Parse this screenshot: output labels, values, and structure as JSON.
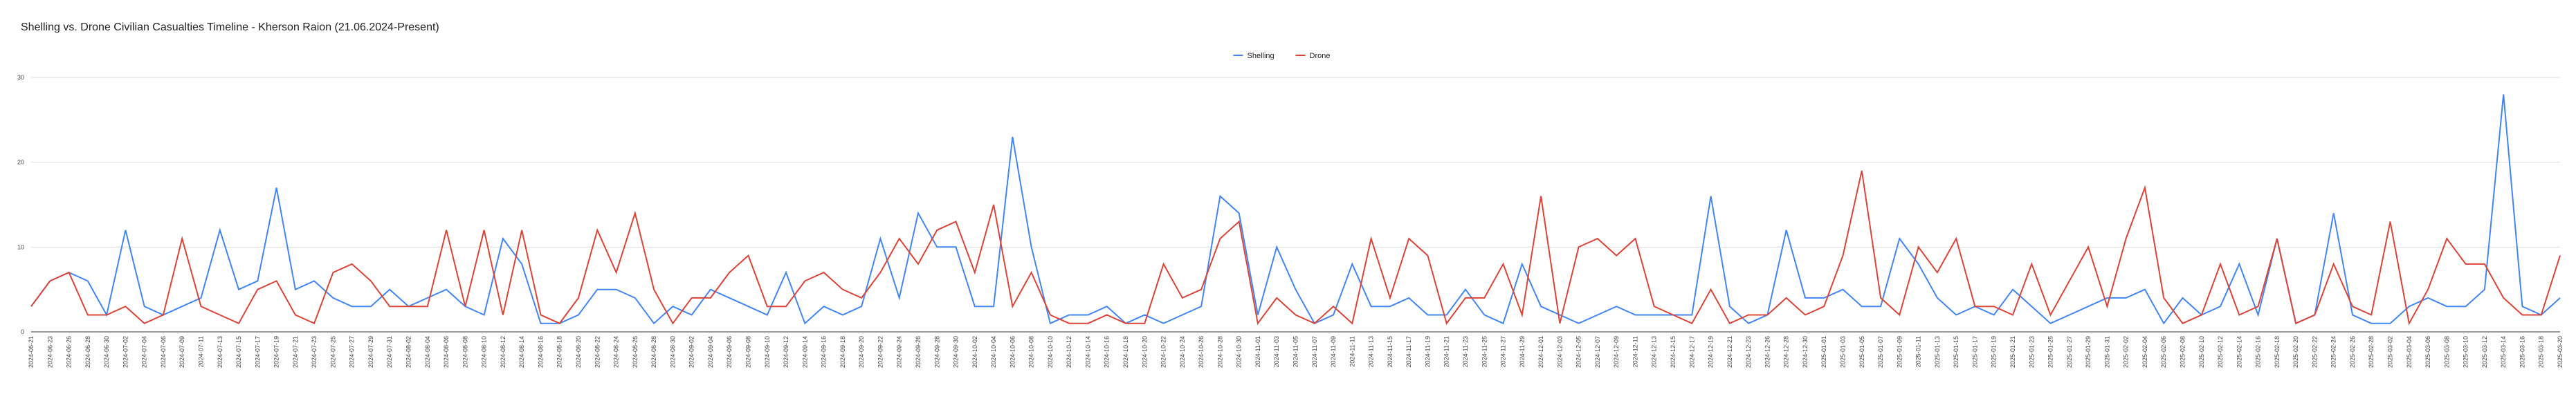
{
  "chart_data": {
    "type": "line",
    "title": "Shelling vs. Drone Civilian Casualties Timeline - Kherson Raion (21.06.2024-Present)",
    "categories": [
      "2024-06-21",
      "2024-06-23",
      "2024-06-26",
      "2024-06-28",
      "2024-06-30",
      "2024-07-02",
      "2024-07-04",
      "2024-07-06",
      "2024-07-09",
      "2024-07-11",
      "2024-07-13",
      "2024-07-15",
      "2024-07-17",
      "2024-07-19",
      "2024-07-21",
      "2024-07-23",
      "2024-07-25",
      "2024-07-27",
      "2024-07-29",
      "2024-07-31",
      "2024-08-02",
      "2024-08-04",
      "2024-08-06",
      "2024-08-08",
      "2024-08-10",
      "2024-08-12",
      "2024-08-14",
      "2024-08-16",
      "2024-08-18",
      "2024-08-20",
      "2024-08-22",
      "2024-08-24",
      "2024-08-26",
      "2024-08-28",
      "2024-08-30",
      "2024-09-02",
      "2024-09-04",
      "2024-09-06",
      "2024-09-08",
      "2024-09-10",
      "2024-09-12",
      "2024-09-14",
      "2024-09-16",
      "2024-09-18",
      "2024-09-20",
      "2024-09-22",
      "2024-09-24",
      "2024-09-26",
      "2024-09-28",
      "2024-09-30",
      "2024-10-02",
      "2024-10-04",
      "2024-10-06",
      "2024-10-08",
      "2024-10-10",
      "2024-10-12",
      "2024-10-14",
      "2024-10-16",
      "2024-10-18",
      "2024-10-20",
      "2024-10-22",
      "2024-10-24",
      "2024-10-26",
      "2024-10-28",
      "2024-10-30",
      "2024-11-01",
      "2024-11-03",
      "2024-11-05",
      "2024-11-07",
      "2024-11-09",
      "2024-11-11",
      "2024-11-13",
      "2024-11-15",
      "2024-11-17",
      "2024-11-19",
      "2024-11-21",
      "2024-11-23",
      "2024-11-25",
      "2024-11-27",
      "2024-11-29",
      "2024-12-01",
      "2024-12-03",
      "2024-12-05",
      "2024-12-07",
      "2024-12-09",
      "2024-12-11",
      "2024-12-13",
      "2024-12-15",
      "2024-12-17",
      "2024-12-19",
      "2024-12-21",
      "2024-12-23",
      "2024-12-26",
      "2024-12-28",
      "2024-12-30",
      "2025-01-01",
      "2025-01-03",
      "2025-01-05",
      "2025-01-07",
      "2025-01-09",
      "2025-01-11",
      "2025-01-13",
      "2025-01-15",
      "2025-01-17",
      "2025-01-19",
      "2025-01-21",
      "2025-01-23",
      "2025-01-25",
      "2025-01-27",
      "2025-01-29",
      "2025-01-31",
      "2025-02-02",
      "2025-02-04",
      "2025-02-06",
      "2025-02-08",
      "2025-02-10",
      "2025-02-12",
      "2025-02-14",
      "2025-02-16",
      "2025-02-18",
      "2025-02-20",
      "2025-02-22",
      "2025-02-24",
      "2025-02-26",
      "2025-02-28",
      "2025-03-02",
      "2025-03-04",
      "2025-03-06",
      "2025-03-08",
      "2025-03-10",
      "2025-03-12",
      "2025-03-14",
      "2025-03-16",
      "2025-03-18",
      "2025-03-20"
    ],
    "series": [
      {
        "name": "Shelling",
        "color": "#4285f4",
        "values": [
          3,
          6,
          7,
          6,
          2,
          12,
          3,
          2,
          3,
          4,
          12,
          5,
          6,
          17,
          5,
          6,
          4,
          3,
          3,
          5,
          3,
          4,
          5,
          3,
          2,
          11,
          8,
          1,
          1,
          2,
          5,
          5,
          4,
          1,
          3,
          2,
          5,
          4,
          3,
          2,
          7,
          1,
          3,
          2,
          3,
          11,
          4,
          14,
          10,
          10,
          3,
          3,
          23,
          10,
          1,
          2,
          2,
          3,
          1,
          2,
          1,
          2,
          3,
          16,
          14,
          2,
          10,
          5,
          1,
          2,
          8,
          3,
          3,
          4,
          2,
          2,
          5,
          2,
          1,
          8,
          3,
          2,
          1,
          2,
          3,
          2,
          2,
          2,
          2,
          16,
          3,
          1,
          2,
          12,
          4,
          4,
          5,
          3,
          3,
          11,
          8,
          4,
          2,
          3,
          2,
          5,
          3,
          1,
          2,
          3,
          4,
          4,
          5,
          1,
          4,
          2,
          3,
          8,
          2,
          11,
          1,
          2,
          14,
          2,
          1,
          1,
          3,
          4,
          3,
          3,
          5,
          28,
          3,
          2,
          4
        ]
      },
      {
        "name": "Drone",
        "color": "#db4437",
        "values": [
          3,
          6,
          7,
          2,
          2,
          3,
          1,
          2,
          11,
          3,
          2,
          1,
          5,
          6,
          2,
          1,
          7,
          8,
          6,
          3,
          3,
          3,
          12,
          3,
          12,
          2,
          12,
          2,
          1,
          4,
          12,
          7,
          14,
          5,
          1,
          4,
          4,
          7,
          9,
          3,
          3,
          6,
          7,
          5,
          4,
          7,
          11,
          8,
          12,
          13,
          7,
          15,
          3,
          7,
          2,
          1,
          1,
          2,
          1,
          1,
          8,
          4,
          5,
          11,
          13,
          1,
          4,
          2,
          1,
          3,
          1,
          11,
          4,
          11,
          9,
          1,
          4,
          4,
          8,
          2,
          16,
          1,
          10,
          11,
          9,
          11,
          3,
          2,
          1,
          5,
          1,
          2,
          2,
          4,
          2,
          3,
          9,
          19,
          4,
          2,
          10,
          7,
          11,
          3,
          3,
          2,
          8,
          2,
          6,
          10,
          3,
          11,
          17,
          4,
          1,
          2,
          8,
          2,
          3,
          11,
          1,
          2,
          8,
          3,
          2,
          13,
          1,
          5,
          11,
          8,
          8,
          4,
          2,
          2,
          9
        ]
      }
    ],
    "ylim": [
      0,
      30
    ],
    "yticks": [
      0,
      10,
      20,
      30
    ],
    "grid": true,
    "legend": "top"
  }
}
